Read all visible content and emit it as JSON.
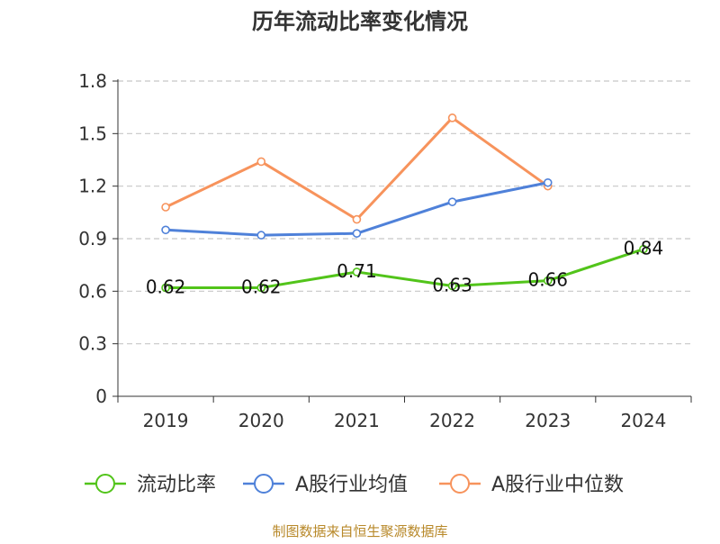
{
  "chart_data": {
    "type": "line",
    "title": "历年流动比率变化情况",
    "categories": [
      "2019",
      "2020",
      "2021",
      "2022",
      "2023",
      "2024"
    ],
    "ylim": [
      0,
      1.8
    ],
    "yticks": [
      "0",
      "0.3",
      "0.6",
      "0.9",
      "1.2",
      "1.5",
      "1.8"
    ],
    "grid": true,
    "legend_position": "bottom",
    "series": [
      {
        "name": "流动比率",
        "color": "#52c41a",
        "values": [
          0.62,
          0.62,
          0.71,
          0.63,
          0.66,
          0.84
        ],
        "labels": [
          "0.62",
          "0.62",
          "0.71",
          "0.63",
          "0.66",
          "0.84"
        ]
      },
      {
        "name": "A股行业均值",
        "color": "#4f81d9",
        "values": [
          0.95,
          0.92,
          0.93,
          1.11,
          1.22,
          null
        ]
      },
      {
        "name": "A股行业中位数",
        "color": "#f7935c",
        "values": [
          1.08,
          1.34,
          1.01,
          1.59,
          1.2,
          null
        ]
      }
    ],
    "source": "制图数据来自恒生聚源数据库"
  }
}
